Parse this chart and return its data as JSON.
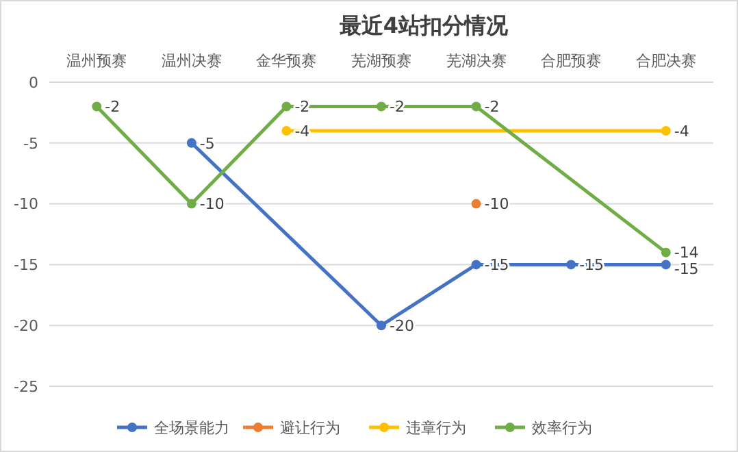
{
  "chart_data": {
    "type": "line",
    "title": "最近4站扣分情况",
    "categories": [
      "温州预赛",
      "温州决赛",
      "金华预赛",
      "芜湖预赛",
      "芜湖决赛",
      "合肥预赛",
      "合肥决赛"
    ],
    "series": [
      {
        "name": "全场景能力",
        "color": "#4472c4",
        "values": [
          null,
          -5,
          null,
          -20,
          -15,
          -15,
          -15
        ]
      },
      {
        "name": "避让行为",
        "color": "#ed7d31",
        "values": [
          null,
          null,
          null,
          null,
          -10,
          null,
          null
        ]
      },
      {
        "name": "违章行为",
        "color": "#ffc000",
        "values": [
          null,
          null,
          -4,
          null,
          null,
          null,
          -4
        ]
      },
      {
        "name": "效率行为",
        "color": "#70ad47",
        "values": [
          -2,
          -10,
          -2,
          -2,
          -2,
          null,
          -14
        ]
      }
    ],
    "ylim": [
      -25,
      0
    ],
    "yticks": [
      0,
      -5,
      -10,
      -15,
      -20,
      -25
    ],
    "grid": "y",
    "legend": "bottom",
    "marker": "circle",
    "line_style": "solid",
    "data_labels": true
  }
}
